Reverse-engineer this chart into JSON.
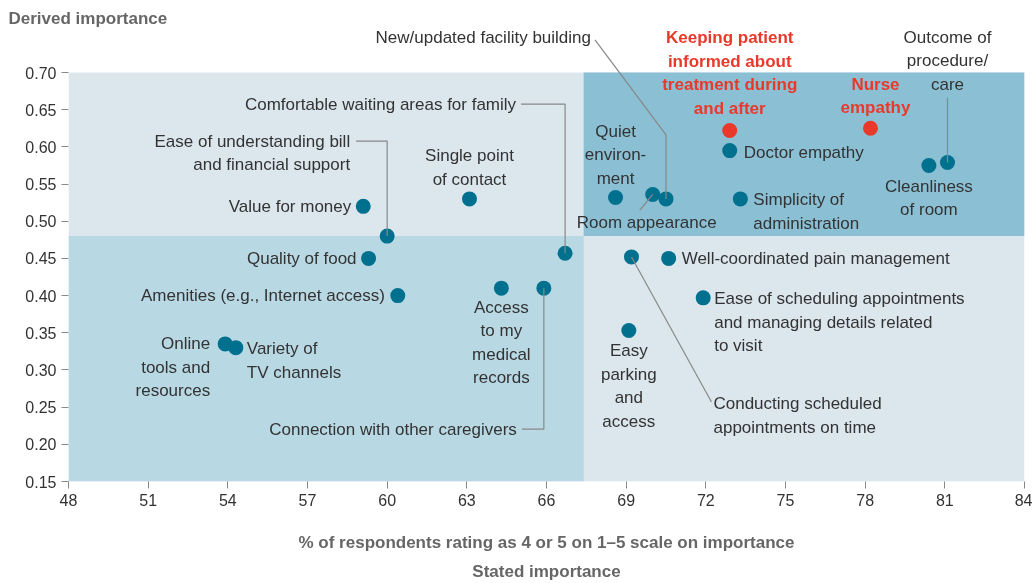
{
  "chart_data": {
    "type": "scatter",
    "ylabel": "Derived importance",
    "xlabel": "% of respondents rating as 4 or 5 on 1–5 scale on importance",
    "xlim": [
      48,
      84
    ],
    "xticks": [
      48,
      51,
      54,
      57,
      60,
      63,
      66,
      69,
      72,
      75,
      78,
      81,
      84
    ],
    "ylim": [
      0.15,
      0.7
    ],
    "yticks": [
      {
        "value": 0.15,
        "label": "0.15"
      },
      {
        "value": 0.2,
        "label": "0.20"
      },
      {
        "value": 0.25,
        "label": "0.25"
      },
      {
        "value": 0.3,
        "label": "0.30"
      },
      {
        "value": 0.35,
        "label": "0.35"
      },
      {
        "value": 0.4,
        "label": "0.40"
      },
      {
        "value": 0.45,
        "label": "0.45"
      },
      {
        "value": 0.5,
        "label": "0.50"
      },
      {
        "value": 0.55,
        "label": "0.55"
      },
      {
        "value": 0.6,
        "label": "0.60"
      },
      {
        "value": 0.65,
        "label": "0.65"
      },
      {
        "value": 0.7,
        "label": "0.70"
      }
    ],
    "grid": false,
    "marker": "circle",
    "bands": [
      {
        "axis": "x",
        "from": 48,
        "to": 84,
        "color": "#dbe6ed"
      },
      {
        "axis": "x",
        "from": 48,
        "to": 67.4,
        "color": "#b8d8e4"
      },
      {
        "axis": "y",
        "from": 0.48,
        "to": 0.7,
        "color": "#8bbfd4"
      }
    ],
    "series": [
      {
        "color": "#00708f",
        "x": [
          59.1,
          60.0,
          59.3,
          60.4,
          53.9,
          54.3,
          63.1,
          64.3,
          65.9,
          66.7,
          68.6,
          70.0,
          70.5,
          72.9,
          73.3,
          80.4,
          81.1,
          69.2,
          70.6,
          71.9,
          69.1
        ],
        "values": [
          0.52,
          0.48,
          0.45,
          0.4,
          0.335,
          0.33,
          0.53,
          0.41,
          0.41,
          0.457,
          0.532,
          0.536,
          0.53,
          0.595,
          0.53,
          0.575,
          0.579,
          0.452,
          0.45,
          0.397,
          0.353
        ]
      },
      {
        "color": "#e8392b",
        "x": [
          72.9,
          78.2
        ],
        "values": [
          0.622,
          0.625
        ]
      }
    ],
    "annotations": [
      {
        "text": "Value for money",
        "x": 59.1,
        "y": 0.52
      },
      {
        "text": "Ease of understanding bill\nand financial support",
        "x": 60.0,
        "y": 0.48
      },
      {
        "text": "Quality of food",
        "x": 59.3,
        "y": 0.45
      },
      {
        "text": "Amenities (e.g., Internet access)",
        "x": 60.4,
        "y": 0.4
      },
      {
        "text": "Online\ntools and\nresources",
        "x": 53.9,
        "y": 0.335
      },
      {
        "text": "Variety of\nTV channels",
        "x": 54.3,
        "y": 0.33
      },
      {
        "text": "Single point\nof contact",
        "x": 63.1,
        "y": 0.53
      },
      {
        "text": "Access\nto my\nmedical\nrecords",
        "x": 64.3,
        "y": 0.41
      },
      {
        "text": "Connection with other caregivers",
        "x": 65.9,
        "y": 0.41
      },
      {
        "text": "Comfortable waiting areas for family",
        "x": 66.7,
        "y": 0.457
      },
      {
        "text": "Quiet\nenviron-\nment",
        "x": 68.6,
        "y": 0.532
      },
      {
        "text": "Room appearance",
        "x": 70.0,
        "y": 0.536
      },
      {
        "text": "New/updated facility building",
        "x": 70.5,
        "y": 0.53
      },
      {
        "text": "Doctor empathy",
        "x": 72.9,
        "y": 0.595
      },
      {
        "text": "Simplicity of\nadministration",
        "x": 73.3,
        "y": 0.53
      },
      {
        "text": "Cleanliness\nof room",
        "x": 80.4,
        "y": 0.575
      },
      {
        "text": "Outcome of\nprocedure/\ncare",
        "x": 81.1,
        "y": 0.579
      },
      {
        "text": "Conducting scheduled\nappointments on time",
        "x": 69.2,
        "y": 0.452
      },
      {
        "text": "Well-coordinated pain management",
        "x": 70.6,
        "y": 0.45
      },
      {
        "text": "Ease of scheduling appointments\nand managing details related\nto visit",
        "x": 71.9,
        "y": 0.397
      },
      {
        "text": "Easy\nparking\nand\naccess",
        "x": 69.1,
        "y": 0.353
      },
      {
        "text": "Keeping patient\ninformed about\ntreatment during\nand after",
        "x": 72.9,
        "y": 0.622
      },
      {
        "text": "Nurse\nempathy",
        "x": 78.2,
        "y": 0.625
      },
      "Stated importance"
    ]
  }
}
